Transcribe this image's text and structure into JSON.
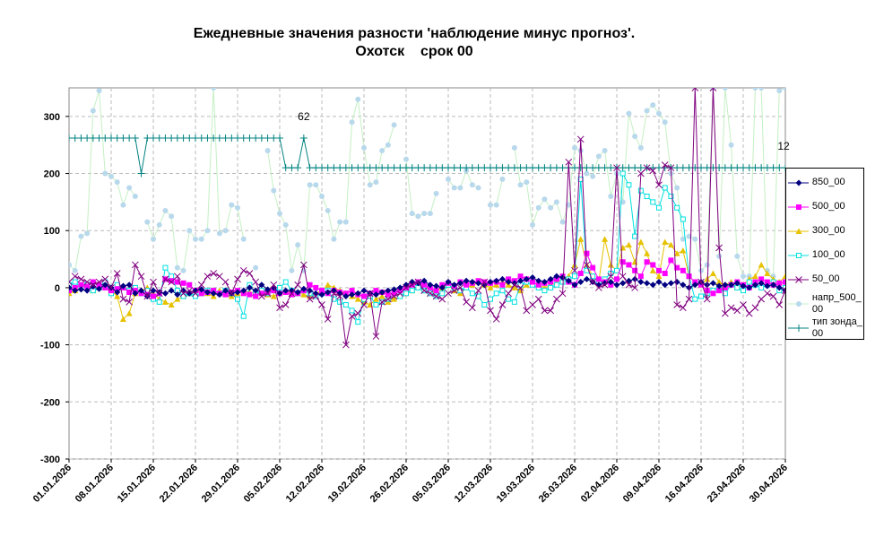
{
  "chart_data": {
    "type": "line",
    "title": "Ежедневные значения разности 'наблюдение минус прогноз'.",
    "subtitle": "Охотск    срок 00",
    "annotations": [
      "62",
      "12"
    ],
    "categories": [
      "01.01.2026",
      null,
      null,
      null,
      null,
      null,
      null,
      "08.01.2026",
      null,
      null,
      null,
      null,
      null,
      null,
      "15.01.2026",
      null,
      null,
      null,
      null,
      null,
      null,
      "22.01.2026",
      null,
      null,
      null,
      null,
      null,
      null,
      "29.01.2026",
      null,
      null,
      null,
      null,
      null,
      null,
      "05.02.2026",
      null,
      null,
      null,
      null,
      null,
      null,
      "12.02.2026",
      null,
      null,
      null,
      null,
      null,
      null,
      "19.02.2026",
      null,
      null,
      null,
      null,
      null,
      null,
      "26.02.2026",
      null,
      null,
      null,
      null,
      null,
      null,
      "05.03.2026",
      null,
      null,
      null,
      null,
      null,
      null,
      "12.03.2026",
      null,
      null,
      null,
      null,
      null,
      null,
      "19.03.2026",
      null,
      null,
      null,
      null,
      null,
      null,
      "26.03.2026",
      null,
      null,
      null,
      null,
      null,
      null,
      "02.04.2026",
      null,
      null,
      null,
      null,
      null,
      null,
      "09.04.2026",
      null,
      null,
      null,
      null,
      null,
      null,
      "16.04.2026",
      null,
      null,
      null,
      null,
      null,
      null,
      "23.04.2026",
      null,
      null,
      null,
      null,
      null,
      null,
      "30.04.2026"
    ],
    "ylim": [
      -300,
      350
    ],
    "yticks": [
      -300,
      -200,
      -100,
      0,
      100,
      200,
      300
    ],
    "grid": true,
    "series": [
      {
        "name": "850_00",
        "color": "#000080",
        "marker": "diamond",
        "values": [
          0,
          -5,
          -3,
          -5,
          2,
          -2,
          5,
          0,
          -8,
          3,
          5,
          -10,
          -5,
          -15,
          -5,
          -8,
          -10,
          -5,
          -12,
          -5,
          -10,
          -5,
          -3,
          -8,
          -10,
          -12,
          -5,
          -10,
          -8,
          -5,
          0,
          -5,
          5,
          -3,
          0,
          -10,
          -5,
          -5,
          -8,
          -2,
          -5,
          -10,
          -12,
          -8,
          -5,
          -10,
          -15,
          -12,
          -10,
          -5,
          -10,
          -12,
          -8,
          -5,
          -3,
          0,
          5,
          10,
          8,
          12,
          5,
          3,
          0,
          10,
          5,
          8,
          12,
          10,
          8,
          5,
          10,
          12,
          15,
          10,
          8,
          12,
          15,
          18,
          12,
          10,
          15,
          20,
          18,
          12,
          5,
          10,
          15,
          10,
          5,
          8,
          10,
          5,
          8,
          12,
          15,
          10,
          8,
          5,
          10,
          5,
          8,
          10,
          5,
          0,
          5,
          10,
          5,
          8,
          3,
          5,
          5,
          8,
          3,
          0,
          5,
          8,
          3,
          5,
          0,
          -5
        ]
      },
      {
        "name": "500_00",
        "color": "#ff00ff",
        "marker": "square",
        "values": [
          -5,
          0,
          5,
          2,
          10,
          5,
          0,
          -5,
          -2,
          0,
          -8,
          -5,
          -10,
          -12,
          -15,
          -10,
          15,
          12,
          10,
          8,
          5,
          -5,
          -10,
          -8,
          -5,
          -10,
          -12,
          -8,
          -5,
          -10,
          -12,
          -15,
          -10,
          -8,
          -5,
          -10,
          -8,
          -12,
          -10,
          -5,
          5,
          0,
          -5,
          -10,
          -5,
          -8,
          -10,
          -5,
          -12,
          -15,
          -10,
          -5,
          -8,
          -12,
          -10,
          -5,
          0,
          5,
          10,
          5,
          0,
          -5,
          5,
          8,
          3,
          10,
          5,
          8,
          12,
          10,
          8,
          10,
          5,
          15,
          12,
          20,
          15,
          10,
          5,
          8,
          10,
          15,
          20,
          10,
          5,
          25,
          60,
          35,
          15,
          10,
          5,
          15,
          45,
          40,
          30,
          20,
          45,
          40,
          30,
          25,
          48,
          35,
          30,
          20,
          10,
          5,
          -5,
          -10,
          -5,
          0,
          5,
          10,
          5,
          0,
          10,
          15,
          10,
          5,
          8,
          10
        ]
      },
      {
        "name": "300_00",
        "color": "#e6c200",
        "marker": "triangle",
        "values": [
          -10,
          -5,
          0,
          5,
          -5,
          0,
          10,
          -5,
          -15,
          -55,
          -45,
          -10,
          -5,
          0,
          -10,
          -20,
          -25,
          -30,
          -20,
          -15,
          -10,
          -5,
          -8,
          -10,
          -15,
          -5,
          -10,
          -15,
          -10,
          -5,
          -8,
          -10,
          -5,
          -12,
          -15,
          -10,
          -8,
          -5,
          -10,
          -12,
          -15,
          -10,
          -5,
          5,
          0,
          -5,
          -10,
          -15,
          -20,
          -25,
          -30,
          -20,
          -15,
          -25,
          -20,
          -15,
          -10,
          -5,
          0,
          -5,
          -10,
          -5,
          0,
          5,
          -5,
          -10,
          0,
          5,
          10,
          5,
          0,
          5,
          10,
          5,
          0,
          -5,
          5,
          10,
          5,
          0,
          5,
          10,
          15,
          20,
          40,
          85,
          40,
          20,
          10,
          85,
          40,
          30,
          70,
          75,
          45,
          80,
          60,
          30,
          20,
          80,
          75,
          60,
          65,
          20,
          10,
          5,
          15,
          25,
          10,
          5,
          10,
          0,
          5,
          15,
          20,
          40,
          25,
          15,
          10,
          20
        ]
      },
      {
        "name": "100_00",
        "color": "#00e0e0",
        "marker": "open-square",
        "values": [
          5,
          10,
          0,
          5,
          -5,
          0,
          10,
          -10,
          5,
          0,
          -5,
          0,
          -10,
          -5,
          -20,
          -25,
          35,
          20,
          -5,
          -15,
          -10,
          -15,
          -10,
          -5,
          -5,
          -10,
          -5,
          -10,
          -20,
          -50,
          5,
          -10,
          -5,
          -10,
          -5,
          0,
          10,
          -5,
          -10,
          -5,
          -10,
          -15,
          -10,
          -5,
          -20,
          -25,
          -30,
          -40,
          -60,
          -20,
          -15,
          -30,
          -25,
          -20,
          -10,
          -15,
          -10,
          -5,
          0,
          -5,
          -10,
          -15,
          -10,
          5,
          0,
          -5,
          0,
          -10,
          -15,
          -30,
          -20,
          -10,
          -5,
          -20,
          -25,
          5,
          10,
          5,
          0,
          -5,
          0,
          5,
          10,
          15,
          20,
          190,
          30,
          20,
          10,
          15,
          25,
          30,
          200,
          180,
          90,
          170,
          160,
          150,
          140,
          175,
          160,
          140,
          120,
          20,
          -20,
          -15,
          -10,
          -5,
          0,
          -10,
          5,
          0,
          -5,
          10,
          5,
          0,
          5,
          10,
          -5,
          0
        ]
      },
      {
        "name": "50_00",
        "color": "#800080",
        "marker": "x",
        "values": [
          10,
          20,
          15,
          10,
          5,
          10,
          15,
          0,
          25,
          -20,
          -25,
          40,
          20,
          -15,
          10,
          -10,
          15,
          10,
          20,
          -10,
          -5,
          -10,
          5,
          20,
          25,
          20,
          10,
          -10,
          15,
          30,
          25,
          10,
          -15,
          -10,
          5,
          -35,
          -30,
          -10,
          5,
          40,
          -20,
          -15,
          -30,
          -55,
          -10,
          -15,
          -100,
          -50,
          -45,
          -30,
          -10,
          -85,
          -25,
          -20,
          -15,
          -10,
          0,
          5,
          10,
          -5,
          -10,
          -15,
          -20,
          -10,
          -5,
          0,
          -25,
          -35,
          -5,
          10,
          -40,
          -55,
          -30,
          -10,
          5,
          0,
          -40,
          -30,
          -20,
          -40,
          -40,
          -20,
          -10,
          220,
          30,
          260,
          40,
          10,
          0,
          5,
          20,
          210,
          20,
          5,
          0,
          200,
          210,
          205,
          180,
          215,
          210,
          -30,
          -35,
          -20,
          350,
          10,
          -20,
          350,
          70,
          -45,
          -35,
          -40,
          -30,
          -45,
          -35,
          -20,
          -10,
          -15,
          -30,
          -5
        ]
      },
      {
        "name": "напр_500_00",
        "color": "#b8d8ec",
        "line_color": "#c4f0c4",
        "marker": "circle",
        "values": [
          40,
          30,
          90,
          95,
          310,
          345,
          200,
          195,
          185,
          145,
          175,
          160,
          null,
          115,
          85,
          110,
          135,
          125,
          35,
          30,
          100,
          85,
          85,
          100,
          350,
          95,
          100,
          145,
          140,
          85,
          null,
          35,
          null,
          240,
          170,
          130,
          110,
          30,
          75,
          30,
          180,
          180,
          160,
          135,
          85,
          115,
          115,
          290,
          330,
          245,
          180,
          185,
          240,
          250,
          285,
          null,
          225,
          130,
          125,
          130,
          130,
          165,
          null,
          190,
          175,
          175,
          205,
          180,
          175,
          null,
          145,
          145,
          190,
          null,
          245,
          180,
          185,
          110,
          140,
          155,
          140,
          150,
          115,
          145,
          245,
          240,
          200,
          195,
          230,
          240,
          160,
          200,
          150,
          305,
          265,
          245,
          310,
          320,
          305,
          290,
          200,
          175,
          85,
          90,
          85,
          30,
          40,
          350,
          55,
          350,
          250,
          55,
          20,
          20,
          350,
          350,
          30,
          20,
          345,
          350
        ]
      },
      {
        "name": "тип зонда_00",
        "color": "#008080",
        "marker": "plus",
        "values": [
          262,
          262,
          262,
          262,
          262,
          262,
          262,
          262,
          262,
          262,
          262,
          262,
          200,
          262,
          262,
          262,
          262,
          262,
          262,
          262,
          262,
          262,
          262,
          262,
          262,
          262,
          262,
          262,
          262,
          262,
          262,
          262,
          262,
          262,
          262,
          262,
          210,
          210,
          210,
          262,
          210,
          210,
          210,
          210,
          210,
          210,
          210,
          210,
          210,
          210,
          210,
          210,
          210,
          210,
          210,
          210,
          210,
          210,
          210,
          210,
          210,
          210,
          210,
          210,
          210,
          210,
          210,
          210,
          210,
          210,
          210,
          210,
          210,
          210,
          210,
          210,
          210,
          210,
          210,
          210,
          210,
          210,
          210,
          210,
          210,
          210,
          210,
          210,
          210,
          210,
          210,
          210,
          210,
          210,
          210,
          210,
          210,
          210,
          210,
          210,
          210,
          210,
          210,
          210,
          210,
          210,
          210,
          210,
          210,
          210,
          210,
          210,
          210,
          210,
          210,
          210,
          210,
          210,
          210,
          210
        ]
      }
    ]
  }
}
